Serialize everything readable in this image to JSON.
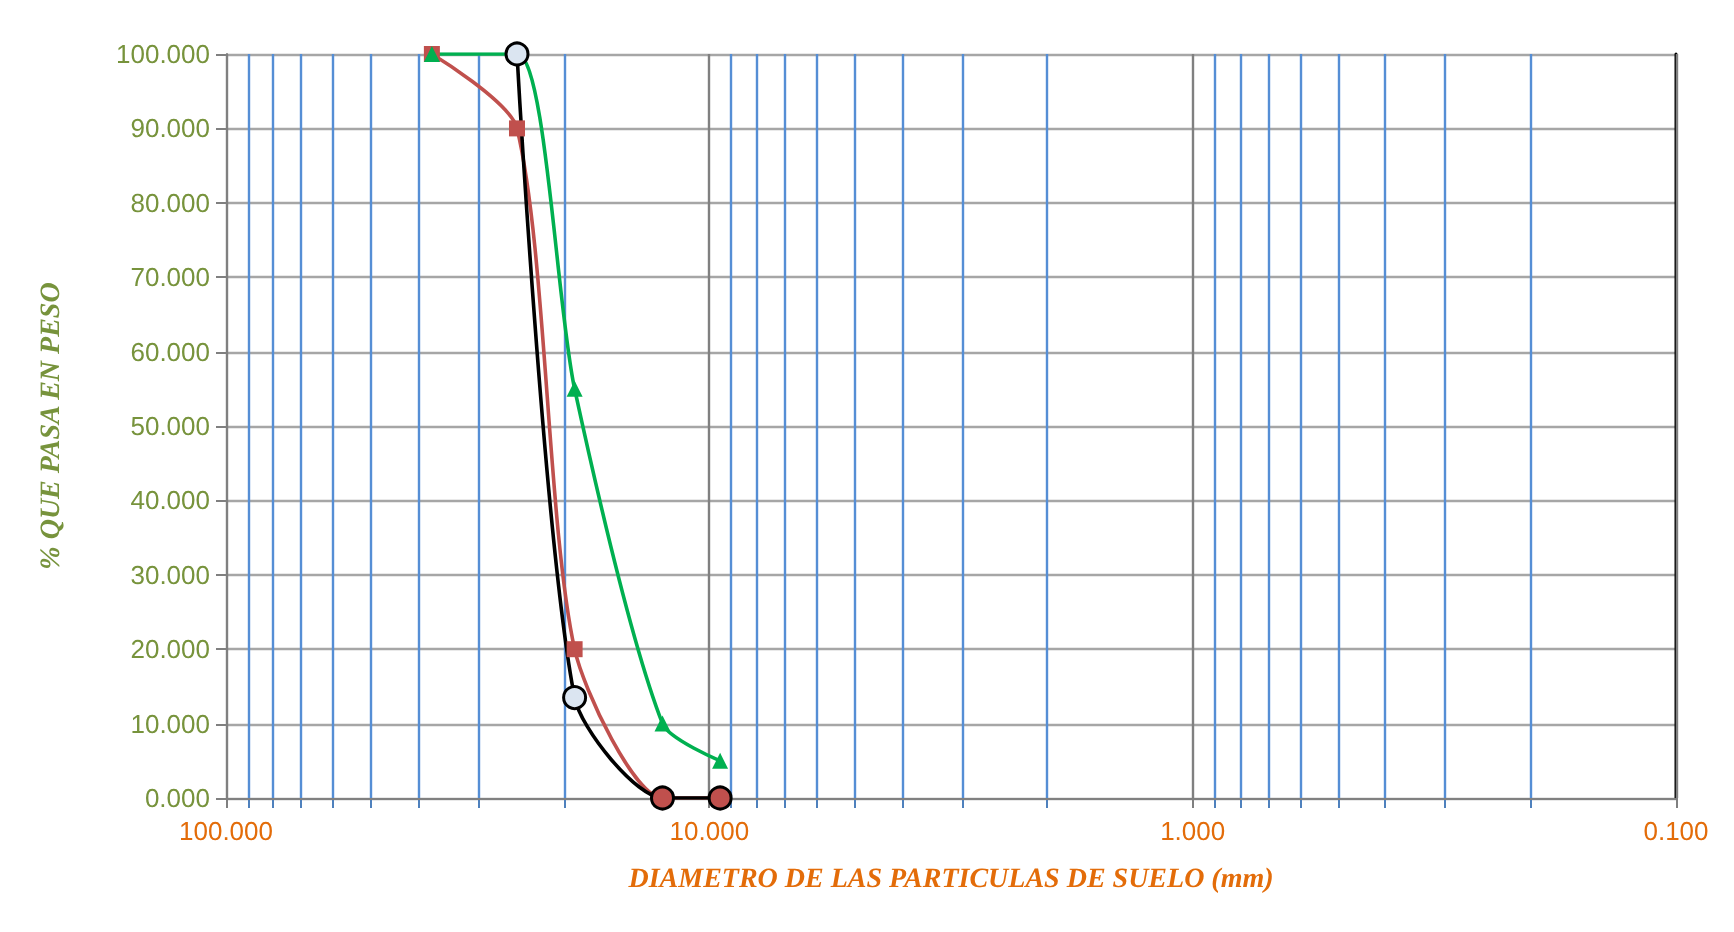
{
  "chart_data": {
    "type": "line",
    "xlabel": "DIAMETRO DE LAS PARTICULAS DE SUELO (mm)",
    "ylabel": "% QUE PASA EN PESO",
    "log": "x",
    "grid": true,
    "line_style": "solid",
    "xlim": [
      100,
      0.1
    ],
    "xticks": [
      {
        "value": 100,
        "label": "100.000"
      },
      {
        "value": 90,
        "label": null
      },
      {
        "value": 80,
        "label": null
      },
      {
        "value": 70,
        "label": null
      },
      {
        "value": 60,
        "label": null
      },
      {
        "value": 50,
        "label": null
      },
      {
        "value": 40,
        "label": null
      },
      {
        "value": 30,
        "label": null
      },
      {
        "value": 20,
        "label": null
      },
      {
        "value": 10,
        "label": "10.000"
      },
      {
        "value": 9,
        "label": null
      },
      {
        "value": 8,
        "label": null
      },
      {
        "value": 7,
        "label": null
      },
      {
        "value": 6,
        "label": null
      },
      {
        "value": 5,
        "label": null
      },
      {
        "value": 4,
        "label": null
      },
      {
        "value": 3,
        "label": null
      },
      {
        "value": 2,
        "label": null
      },
      {
        "value": 1,
        "label": "1.000"
      },
      {
        "value": 0.9,
        "label": null
      },
      {
        "value": 0.8,
        "label": null
      },
      {
        "value": 0.7,
        "label": null
      },
      {
        "value": 0.6,
        "label": null
      },
      {
        "value": 0.5,
        "label": null
      },
      {
        "value": 0.4,
        "label": null
      },
      {
        "value": 0.3,
        "label": null
      },
      {
        "value": 0.2,
        "label": null
      },
      {
        "value": 0.1,
        "label": "0.100"
      }
    ],
    "ylim": [
      0,
      100
    ],
    "yticks": [
      {
        "value": 0,
        "label": "0.000"
      },
      {
        "value": 10,
        "label": "10.000"
      },
      {
        "value": 20,
        "label": "20.000"
      },
      {
        "value": 30,
        "label": "30.000"
      },
      {
        "value": 40,
        "label": "40.000"
      },
      {
        "value": 50,
        "label": "50.000"
      },
      {
        "value": 60,
        "label": "60.000"
      },
      {
        "value": 70,
        "label": "70.000"
      },
      {
        "value": 80,
        "label": "80.000"
      },
      {
        "value": 90,
        "label": "90.000"
      },
      {
        "value": 100,
        "label": "100.000"
      }
    ],
    "series": [
      {
        "color": "#c0504d",
        "marker": "square",
        "x": [
          37.5,
          25,
          19,
          12.5,
          9.5
        ],
        "values": [
          100,
          90,
          20,
          0,
          0
        ]
      },
      {
        "color": "#00b050",
        "marker": "triangle",
        "x": [
          37.5,
          25,
          19,
          12.5,
          9.5
        ],
        "values": [
          100,
          100,
          55,
          10,
          5
        ]
      },
      {
        "color": "#000000",
        "marker": "circle",
        "x": [
          25,
          19,
          12.5,
          9.5
        ],
        "values": [
          100,
          13.5,
          0,
          0
        ],
        "colors": [
          "#dbe5f1",
          "#dbe5f1",
          "#c0504d",
          "#c0504d"
        ]
      }
    ]
  }
}
